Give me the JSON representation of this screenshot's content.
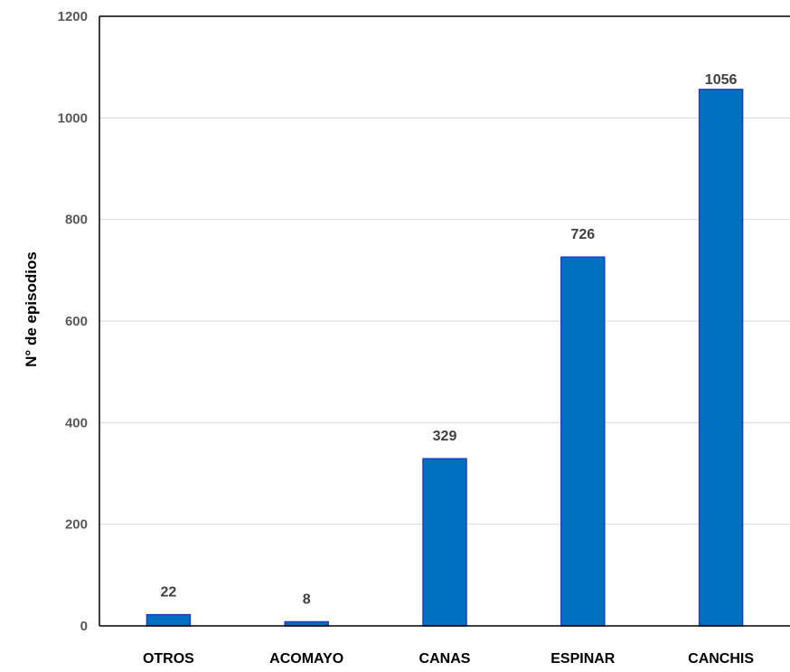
{
  "chart_data": {
    "type": "bar",
    "categories": [
      "OTROS",
      "ACOMAYO",
      "CANAS",
      "ESPINAR",
      "CANCHIS"
    ],
    "values": [
      22,
      8,
      329,
      726,
      1056
    ],
    "data_labels": [
      "22",
      "8",
      "329",
      "726",
      "1056"
    ],
    "title": "",
    "xlabel": "",
    "ylabel": "N° de episodios",
    "ylim": [
      0,
      1200
    ],
    "yticks": [
      0,
      200,
      400,
      600,
      800,
      1000,
      1200
    ],
    "ytick_labels": [
      "0",
      "200",
      "400",
      "600",
      "800",
      "1000",
      "1200"
    ],
    "grid": "horizontal",
    "legend": "none",
    "colors": {
      "bar_fill": "#0070c0",
      "bar_stroke": "#1f3fbf",
      "grid": "#d9d9d9",
      "axis": "#000000"
    }
  }
}
